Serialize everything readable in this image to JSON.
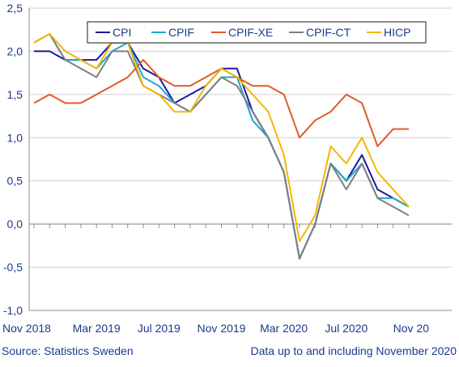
{
  "chart_data": {
    "type": "line",
    "x_labels": [
      "Nov 2018",
      "Dec 2018",
      "Jan 2019",
      "Feb 2019",
      "Mar 2019",
      "Apr 2019",
      "May 2019",
      "Jun 2019",
      "Jul 2019",
      "Aug 2019",
      "Sep 2019",
      "Oct 2019",
      "Nov 2019",
      "Dec 2019",
      "Jan 2020",
      "Feb 2020",
      "Mar 2020",
      "Apr 2020",
      "May 2020",
      "Jun 2020",
      "Jul 2020",
      "Aug 2020",
      "Sep 2020",
      "Oct 2020",
      "Nov 2020"
    ],
    "tick_labels": [
      {
        "index": 0,
        "label": "Nov 2018"
      },
      {
        "index": 4,
        "label": "Mar 2019"
      },
      {
        "index": 8,
        "label": "Jul 2019"
      },
      {
        "index": 12,
        "label": "Nov 2019"
      },
      {
        "index": 16,
        "label": "Mar 2020"
      },
      {
        "index": 20,
        "label": "Jul 2020"
      },
      {
        "index": 24,
        "label": "Nov 20"
      }
    ],
    "y_ticks": [
      "2,5",
      "2,0",
      "1,5",
      "1,0",
      "0,5",
      "0,0",
      "-0,5",
      "-1,0"
    ],
    "ylim": [
      -1.0,
      2.5
    ],
    "y_step": 0.5,
    "grid": "horizontal",
    "legend_position": "top",
    "series": [
      {
        "name": "CPI",
        "color": "#1a1aa0",
        "values": [
          2.0,
          2.0,
          1.9,
          1.9,
          1.9,
          2.1,
          2.1,
          1.8,
          1.7,
          1.4,
          1.5,
          1.6,
          1.8,
          1.8,
          1.3,
          1.0,
          0.6,
          -0.4,
          0.0,
          0.7,
          0.5,
          0.8,
          0.4,
          0.3,
          0.2
        ]
      },
      {
        "name": "CPIF",
        "color": "#1fa6d0",
        "values": [
          2.1,
          2.2,
          1.9,
          1.9,
          1.8,
          2.0,
          2.1,
          1.7,
          1.6,
          1.4,
          1.3,
          1.5,
          1.7,
          1.7,
          1.2,
          1.0,
          0.6,
          -0.4,
          0.0,
          0.7,
          0.5,
          0.7,
          0.3,
          0.3,
          0.2
        ]
      },
      {
        "name": "CPIF-XE",
        "color": "#e05a2b",
        "values": [
          1.4,
          1.5,
          1.4,
          1.4,
          1.5,
          1.6,
          1.7,
          1.9,
          1.7,
          1.6,
          1.6,
          1.7,
          1.8,
          1.7,
          1.6,
          1.6,
          1.5,
          1.0,
          1.2,
          1.3,
          1.5,
          1.4,
          0.9,
          1.1,
          1.1
        ]
      },
      {
        "name": "CPIF-CT",
        "color": "#7f7f7f",
        "values": [
          2.1,
          2.2,
          1.9,
          1.8,
          1.7,
          2.0,
          2.0,
          1.6,
          1.5,
          1.4,
          1.3,
          1.5,
          1.7,
          1.6,
          1.3,
          1.0,
          0.6,
          -0.4,
          0.0,
          0.7,
          0.4,
          0.7,
          0.3,
          0.2,
          0.1
        ]
      },
      {
        "name": "HICP",
        "color": "#f2b705",
        "values": [
          2.1,
          2.2,
          2.0,
          1.9,
          1.8,
          2.1,
          2.1,
          1.6,
          1.5,
          1.3,
          1.3,
          1.6,
          1.8,
          1.7,
          1.5,
          1.3,
          0.8,
          -0.2,
          0.1,
          0.9,
          0.7,
          1.0,
          0.6,
          0.4,
          0.2
        ]
      }
    ]
  },
  "footer": {
    "source": "Source: Statistics Sweden",
    "note": "Data up to and including November 2020"
  }
}
